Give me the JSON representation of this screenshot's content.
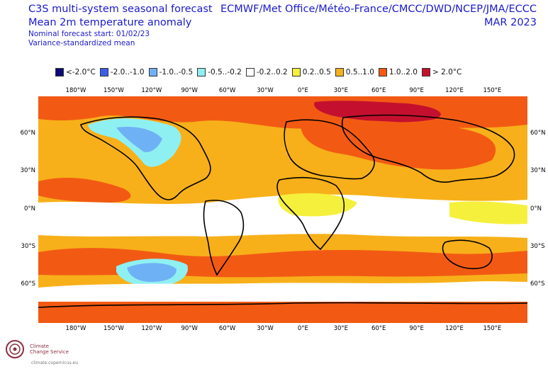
{
  "header": {
    "title_line1": "C3S multi-system seasonal forecast",
    "title_line2": "Mean 2m temperature anomaly",
    "subtitle_line1": "Nominal forecast start: 01/02/23",
    "subtitle_line2": "Variance-standardized mean",
    "systems": "ECMWF/Met Office/Météo-France/CMCC/DWD/NCEP/JMA/ECCC",
    "period": "MAR 2023"
  },
  "legend": [
    {
      "label": "<-2.0°C",
      "color": "#0a0a78"
    },
    {
      "label": "-2.0..-1.0",
      "color": "#3b5ee8"
    },
    {
      "label": "-1.0..-0.5",
      "color": "#6fb1f5"
    },
    {
      "label": "-0.5..-0.2",
      "color": "#8ff0f2"
    },
    {
      "label": "-0.2..0.2",
      "color": "#ffffff"
    },
    {
      "label": "0.2..0.5",
      "color": "#f5f03c"
    },
    {
      "label": "0.5..1.0",
      "color": "#f7b019"
    },
    {
      "label": "1.0..2.0",
      "color": "#f25a14"
    },
    {
      "label": "> 2.0°C",
      "color": "#c4102e"
    }
  ],
  "axes": {
    "lon_labels": [
      "180°W",
      "150°W",
      "120°W",
      "90°W",
      "60°W",
      "30°W",
      "0°E",
      "30°E",
      "60°E",
      "90°E",
      "120°E",
      "150°E"
    ],
    "lat_labels": [
      "60°N",
      "30°N",
      "0°N",
      "30°S",
      "60°S"
    ]
  },
  "logo": {
    "line1": "Climate",
    "line2": "Change Service",
    "url": "climate.copernicus.eu"
  }
}
